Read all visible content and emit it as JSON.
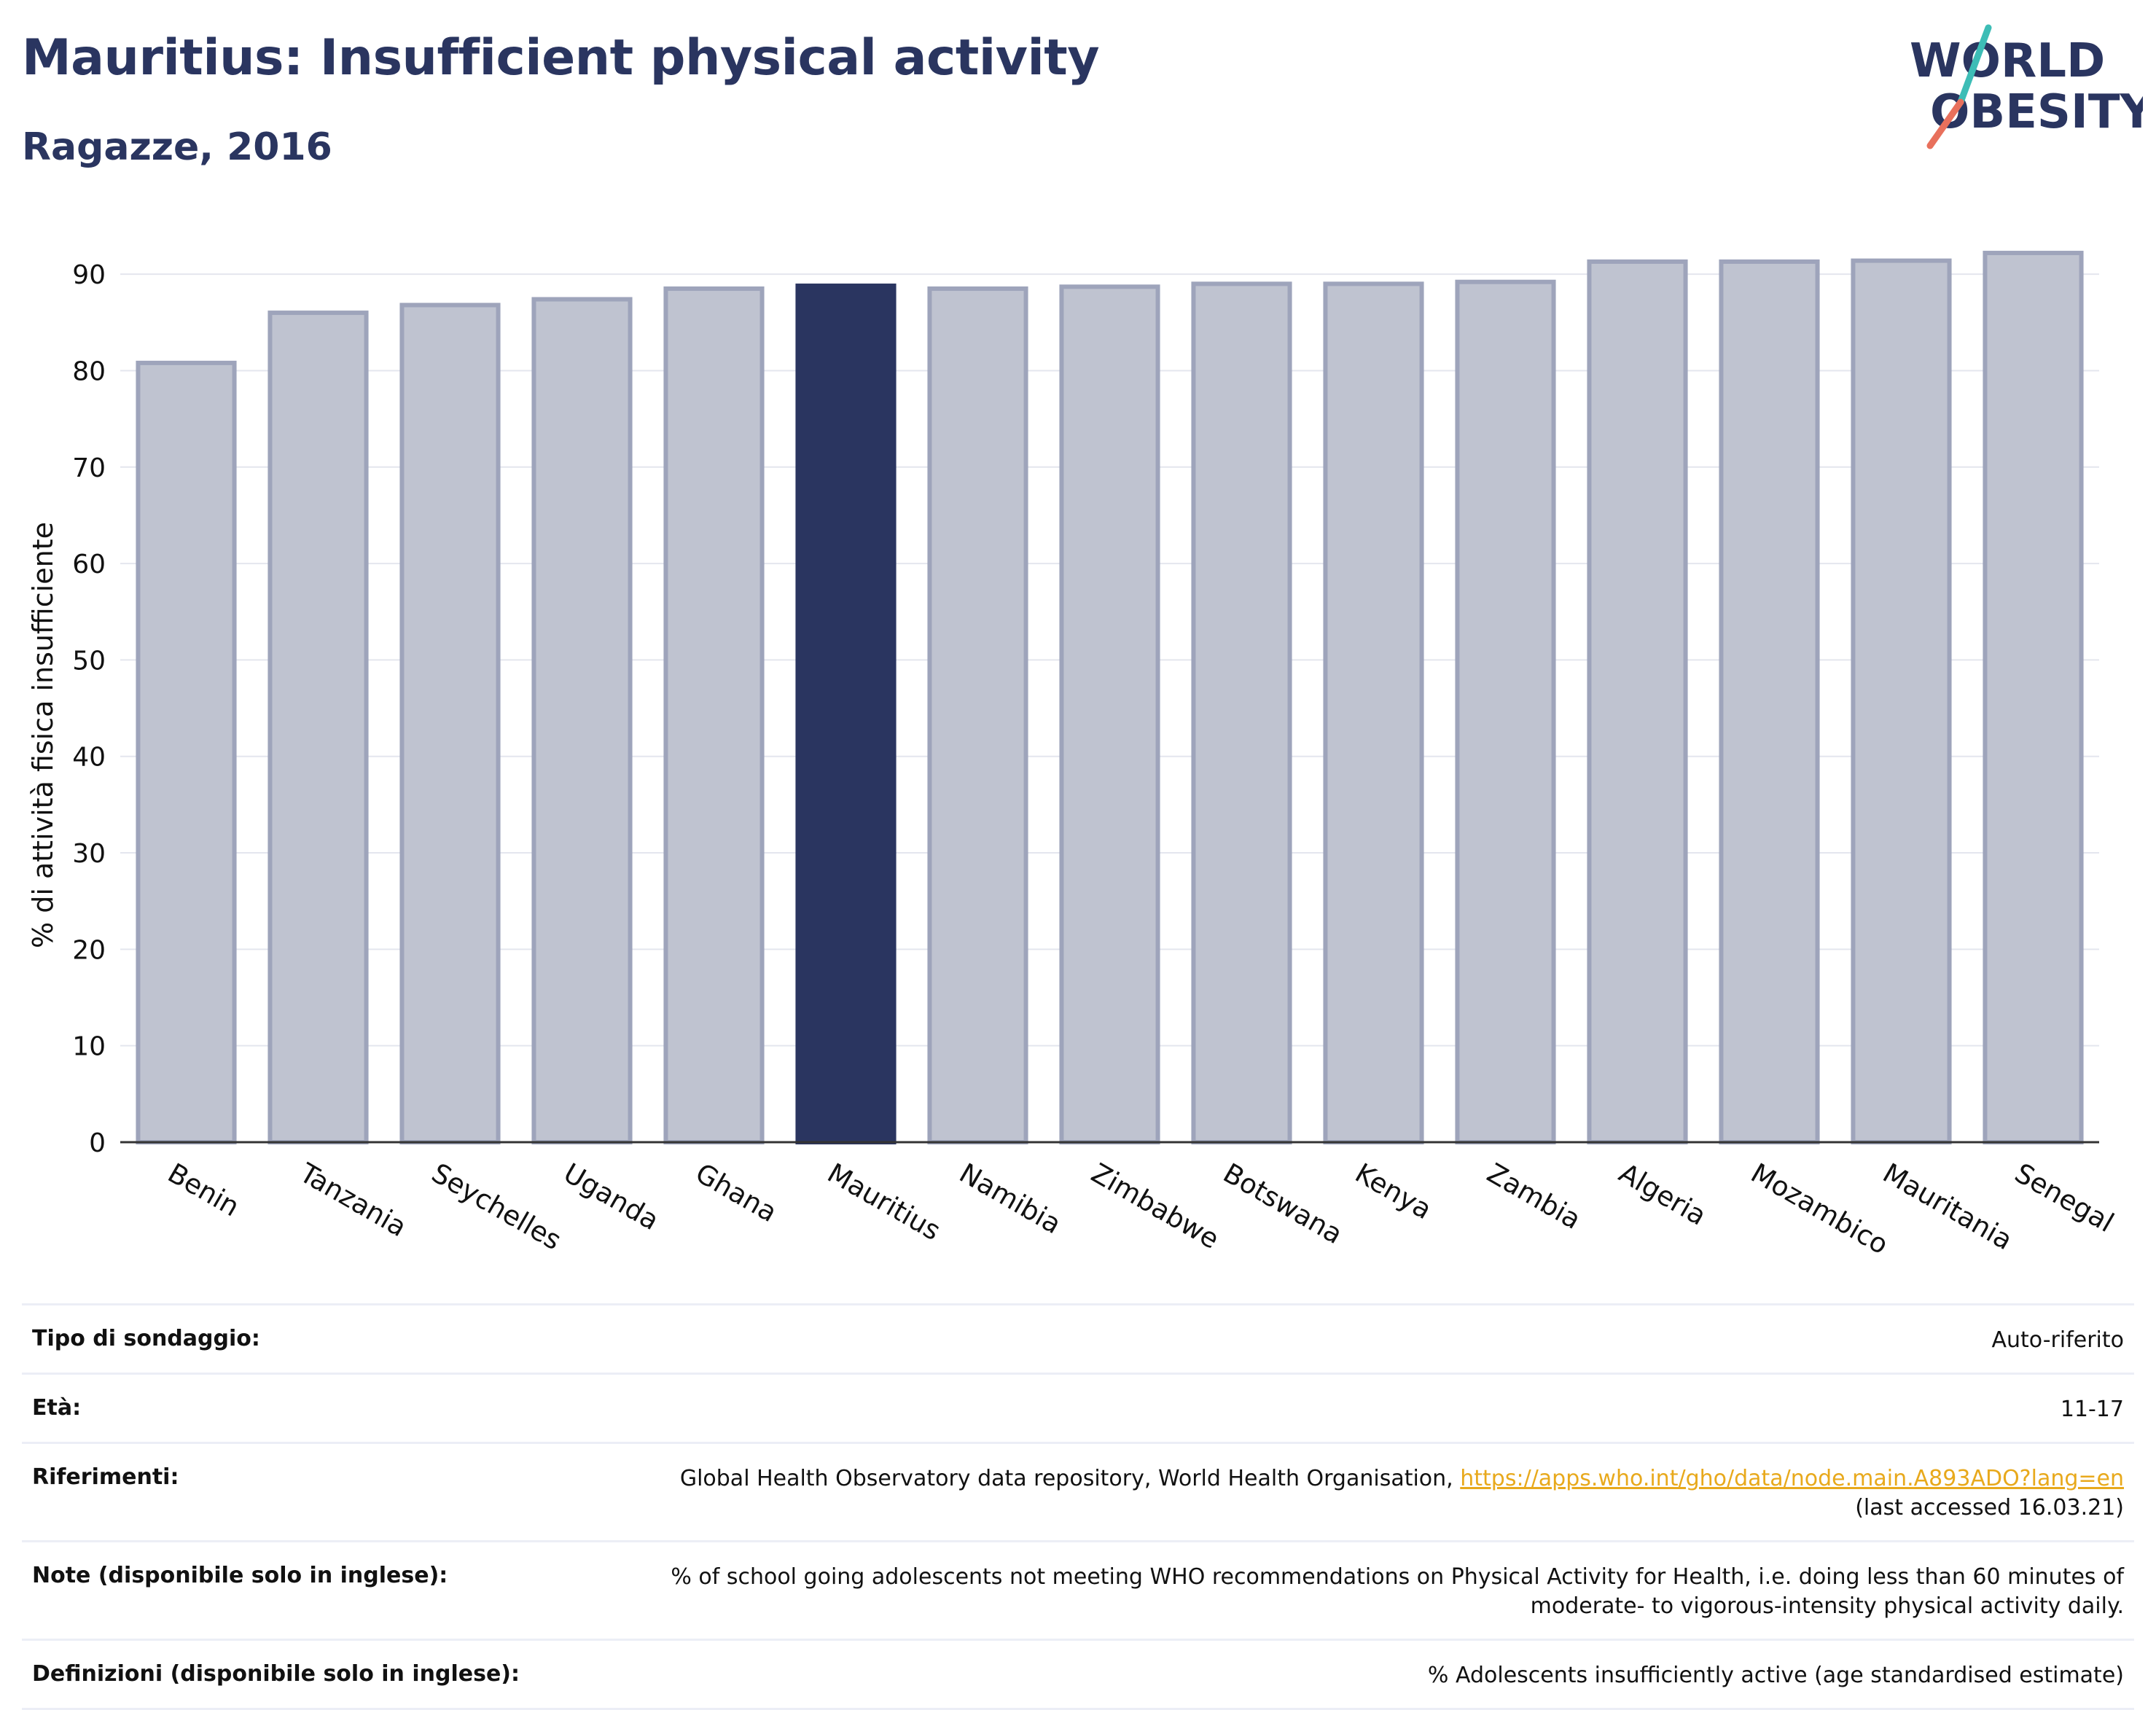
{
  "header": {
    "title": "Mauritius: Insufficient physical activity",
    "subtitle": "Ragazze, 2016"
  },
  "logo": {
    "line1": "WORLD",
    "line2": "OBESITY",
    "text_color": "#2a3560",
    "slash_top_color": "#3dbdb6",
    "slash_bottom_color": "#e8705c"
  },
  "colors": {
    "highlight_bar": "#2a3560",
    "other_bar_fill": "#bfc3d0",
    "other_bar_stroke": "#9ea4bb",
    "grid": "#e4e6ee",
    "axis": "#333333",
    "link": "#e8a91c"
  },
  "chart_data": {
    "type": "bar",
    "title": "Mauritius: Insufficient physical activity",
    "subtitle": "Ragazze, 2016",
    "xlabel": "",
    "ylabel": "% di attività fisica insufficiente",
    "ylim": [
      0,
      95
    ],
    "yticks": [
      0,
      10,
      20,
      30,
      40,
      50,
      60,
      70,
      80,
      90
    ],
    "grid": true,
    "highlight": "Mauritius",
    "categories": [
      "Benin",
      "Tanzania",
      "Seychelles",
      "Uganda",
      "Ghana",
      "Mauritius",
      "Namibia",
      "Zimbabwe",
      "Botswana",
      "Kenya",
      "Zambia",
      "Algeria",
      "Mozambico",
      "Mauritania",
      "Senegal"
    ],
    "values": [
      80.8,
      86.0,
      86.8,
      87.4,
      88.5,
      88.8,
      88.5,
      88.7,
      89.0,
      89.0,
      89.2,
      91.3,
      91.3,
      91.4,
      92.2
    ]
  },
  "info": {
    "rows": [
      {
        "label": "Tipo di sondaggio:",
        "value": "Auto-riferito"
      },
      {
        "label": "Età:",
        "value": "11-17"
      },
      {
        "label": "Riferimenti:",
        "value": "Global Health Observatory data repository, World Health Organisation,",
        "link": "https://apps.who.int/gho/data/node.main.A893ADO?lang=en",
        "value2": "(last accessed 16.03.21)"
      },
      {
        "label": "Note (disponibile solo in inglese):",
        "value": "% of school going adolescents not meeting WHO recommendations on Physical Activity for Health, i.e. doing less than 60 minutes of moderate- to vigorous-intensity physical activity daily."
      },
      {
        "label": "Definizioni (disponibile solo in inglese):",
        "value": "% Adolescents insufficiently active (age standardised estimate)"
      }
    ]
  }
}
